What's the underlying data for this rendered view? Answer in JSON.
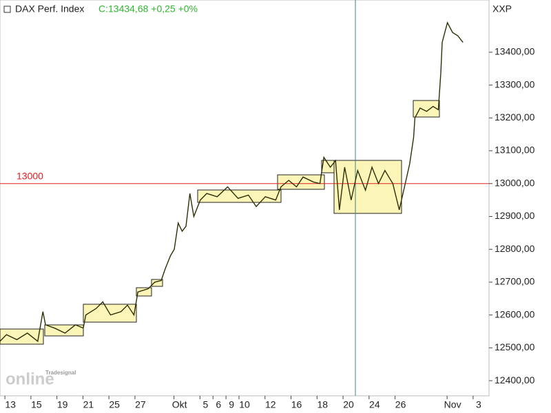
{
  "chart_data": {
    "type": "line",
    "title": "DAX Perf. Index",
    "quote": "C:13434,68 +0,25 +0%",
    "instrument_code": "XXP",
    "logo": {
      "brand": "Tradesignal",
      "product": "online"
    },
    "hline": 13000,
    "color": "#2e2e05",
    "quote_color": "#2fb52f",
    "hline_color": "#e02020",
    "x": [
      -0.8,
      -0.3,
      0.5,
      1.3,
      2.1,
      2.5,
      2.7,
      3.4,
      4.2,
      5.0,
      5.6,
      5.8,
      6.6,
      7.1,
      7.7,
      8.5,
      9.0,
      9.5,
      9.8,
      10.6,
      11.1,
      11.6,
      11.9,
      12.3,
      12.6,
      12.9,
      13.2,
      13.5,
      13.8,
      14.1,
      14.6,
      15.1,
      15.9,
      16.7,
      17.5,
      18.3,
      18.9,
      19.6,
      20.4,
      20.8,
      21.4,
      22.0,
      22.5,
      23.3,
      23.8,
      24.1,
      24.6,
      25.0,
      25.3,
      25.7,
      26.2,
      26.7,
      27.3,
      27.8,
      28.3,
      28.8,
      29.4,
      29.9,
      30.3,
      30.7,
      31.0,
      31.1,
      31.5,
      32.0,
      32.5,
      32.9,
      33.1,
      33.2,
      33.6,
      34.0,
      34.4,
      34.8
    ],
    "values": [
      12520,
      12540,
      12525,
      12545,
      12520,
      12610,
      12570,
      12560,
      12545,
      12570,
      12560,
      12600,
      12620,
      12640,
      12600,
      12610,
      12630,
      12600,
      12670,
      12680,
      12700,
      12705,
      12740,
      12780,
      12800,
      12880,
      12855,
      12870,
      12970,
      12900,
      12950,
      12970,
      12960,
      12990,
      12955,
      12965,
      12930,
      12960,
      12950,
      12990,
      13010,
      12990,
      13020,
      13005,
      13000,
      13080,
      13050,
      13070,
      12920,
      13050,
      12950,
      13040,
      12980,
      13050,
      13000,
      13040,
      13000,
      12920,
      12990,
      13060,
      13140,
      13200,
      13230,
      13220,
      13235,
      13225,
      13340,
      13430,
      13490,
      13460,
      13450,
      13430
    ],
    "xlim": [
      -0.8,
      36.8
    ],
    "xticks": [
      {
        "value": 0,
        "label": "13"
      },
      {
        "value": 2,
        "label": "15"
      },
      {
        "value": 4,
        "label": "19"
      },
      {
        "value": 6,
        "label": "21"
      },
      {
        "value": 8,
        "label": "25"
      },
      {
        "value": 10,
        "label": "27"
      },
      {
        "value": 13,
        "label": "Okt"
      },
      {
        "value": 15,
        "label": "5"
      },
      {
        "value": 16,
        "label": "6"
      },
      {
        "value": 17,
        "label": "9"
      },
      {
        "value": 18,
        "label": "10"
      },
      {
        "value": 20,
        "label": "12"
      },
      {
        "value": 22,
        "label": "16"
      },
      {
        "value": 24,
        "label": "18"
      },
      {
        "value": 26,
        "label": "20"
      },
      {
        "value": 28,
        "label": "24"
      },
      {
        "value": 30,
        "label": "26"
      },
      {
        "value": 34,
        "label": "Nov"
      },
      {
        "value": 36,
        "label": "3"
      }
    ],
    "ylim": [
      12354,
      13559
    ],
    "yticks": [
      {
        "value": 12400,
        "label": "12400,00"
      },
      {
        "value": 12500,
        "label": "12500,00"
      },
      {
        "value": 12600,
        "label": "12600,00"
      },
      {
        "value": 12700,
        "label": "12700,00"
      },
      {
        "value": 12800,
        "label": "12800,00"
      },
      {
        "value": 12900,
        "label": "12900,00"
      },
      {
        "value": 13000,
        "label": "13000,00"
      },
      {
        "value": 13100,
        "label": "13100,00"
      },
      {
        "value": 13200,
        "label": "13200,00"
      },
      {
        "value": 13300,
        "label": "13300,00"
      },
      {
        "value": 13400,
        "label": "13400,00"
      }
    ]
  }
}
